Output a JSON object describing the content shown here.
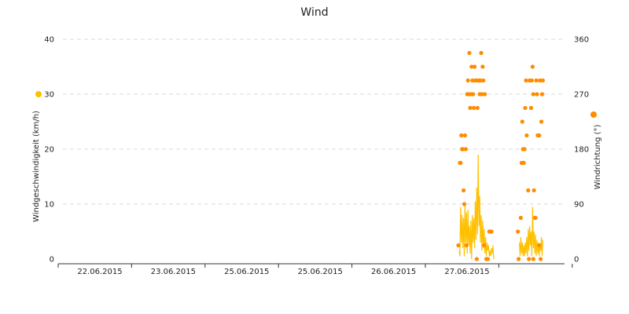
{
  "chart_data": {
    "type": "line",
    "title": "Wind",
    "xlabel": "",
    "x_tick_labels": [
      "22.06.2015",
      "23.06.2015",
      "25.06.2015",
      "25.06.2015",
      "26.06.2015",
      "27.06.2015"
    ],
    "y_left": {
      "label": "Windgeschwindigkeit (km/h)",
      "lim": [
        0,
        40
      ],
      "ticks": [
        0,
        10,
        20,
        30,
        40
      ]
    },
    "y_right": {
      "label": "Windrichtung (°)",
      "lim": [
        0,
        360
      ],
      "ticks": [
        0,
        90,
        180,
        270,
        360
      ]
    },
    "grid": true,
    "legend_markers": {
      "speed": "left",
      "direction": "right"
    },
    "colors": {
      "speed": "#ffc000",
      "direction": "#ff8c00",
      "grid": "#d8d8d8",
      "axis": "#333333"
    },
    "series": [
      {
        "axis": "left",
        "style": "line",
        "x": [
          5.46,
          5.47,
          5.48,
          5.49,
          5.5,
          5.51,
          5.52,
          5.53,
          5.54,
          5.55,
          5.56,
          5.57,
          5.58,
          5.59,
          5.6,
          5.61,
          5.62,
          5.63,
          5.64,
          5.65,
          5.66,
          5.67,
          5.68,
          5.69,
          5.7,
          5.71,
          5.72,
          5.73,
          5.74,
          5.75,
          5.76,
          5.77,
          5.78,
          5.79,
          5.8,
          5.81,
          5.82,
          5.83,
          5.84,
          5.85,
          5.86,
          5.87,
          5.88,
          5.89,
          5.9,
          5.91,
          5.92,
          5.93,
          null,
          6.28,
          6.29,
          6.3,
          6.31,
          6.32,
          6.33,
          6.34,
          6.35,
          6.36,
          6.37,
          6.38,
          6.39,
          6.4,
          6.41,
          6.42,
          6.43,
          6.44,
          6.45,
          6.46,
          6.47,
          6.48,
          6.49,
          6.5,
          6.51,
          6.52,
          6.53,
          6.54,
          6.55,
          6.56,
          6.57,
          6.58,
          6.59,
          6.6
        ],
        "values": [
          1.5,
          0.5,
          9.5,
          3,
          8,
          2,
          7.5,
          0.5,
          10,
          3,
          8.5,
          1,
          9,
          2.5,
          6,
          1,
          7,
          0,
          8,
          3,
          7.5,
          2,
          10.5,
          3.5,
          13,
          4.5,
          19,
          6,
          11.5,
          3,
          8,
          1.5,
          7,
          2,
          5.5,
          1,
          4,
          0.5,
          3,
          1.5,
          2.5,
          0.5,
          1.5,
          0.5,
          2,
          1,
          2.5,
          0,
          null,
          3,
          0.5,
          4,
          1,
          3,
          0.5,
          2.5,
          0.5,
          3,
          1,
          4,
          0.5,
          5.5,
          1.5,
          6,
          2.5,
          5,
          0.5,
          9.5,
          2,
          5,
          1,
          4.5,
          0.5,
          3.5,
          1,
          3,
          0.5,
          2.5,
          1.5,
          4,
          0.5,
          3.5
        ]
      },
      {
        "axis": "right",
        "style": "scatter",
        "points": [
          [
            5.45,
            22.5
          ],
          [
            5.47,
            157.5
          ],
          [
            5.48,
            157.5
          ],
          [
            5.49,
            202.5
          ],
          [
            5.5,
            180
          ],
          [
            5.51,
            180
          ],
          [
            5.52,
            112.5
          ],
          [
            5.53,
            90
          ],
          [
            5.54,
            202.5
          ],
          [
            5.55,
            180
          ],
          [
            5.56,
            22.5
          ],
          [
            5.57,
            270
          ],
          [
            5.58,
            292.5
          ],
          [
            5.59,
            270
          ],
          [
            5.6,
            337.5
          ],
          [
            5.61,
            247.5
          ],
          [
            5.62,
            270
          ],
          [
            5.63,
            315
          ],
          [
            5.64,
            292.5
          ],
          [
            5.65,
            270
          ],
          [
            5.66,
            247.5
          ],
          [
            5.67,
            315
          ],
          [
            5.68,
            292.5
          ],
          [
            5.69,
            292.5
          ],
          [
            5.7,
            0
          ],
          [
            5.71,
            247.5
          ],
          [
            5.72,
            292.5
          ],
          [
            5.73,
            292.5
          ],
          [
            5.74,
            270
          ],
          [
            5.75,
            292.5
          ],
          [
            5.76,
            337.5
          ],
          [
            5.77,
            270
          ],
          [
            5.78,
            315
          ],
          [
            5.79,
            292.5
          ],
          [
            5.8,
            22.5
          ],
          [
            5.81,
            270
          ],
          [
            5.83,
            0
          ],
          [
            5.85,
            0
          ],
          [
            5.87,
            45
          ],
          [
            5.88,
            45
          ],
          [
            5.89,
            45
          ],
          [
            5.9,
            45
          ],
          [
            6.26,
            45
          ],
          [
            6.3,
            67.5
          ],
          [
            6.31,
            157.5
          ],
          [
            6.32,
            225
          ],
          [
            6.33,
            180
          ],
          [
            6.34,
            157.5
          ],
          [
            6.35,
            180
          ],
          [
            6.36,
            247.5
          ],
          [
            6.37,
            292.5
          ],
          [
            6.38,
            202.5
          ],
          [
            6.4,
            112.5
          ],
          [
            6.42,
            292.5
          ],
          [
            6.44,
            247.5
          ],
          [
            6.45,
            292.5
          ],
          [
            6.46,
            315
          ],
          [
            6.47,
            270
          ],
          [
            6.48,
            112.5
          ],
          [
            6.49,
            67.5
          ],
          [
            6.5,
            67.5
          ],
          [
            6.51,
            292.5
          ],
          [
            6.52,
            270
          ],
          [
            6.53,
            202.5
          ],
          [
            6.55,
            202.5
          ],
          [
            6.56,
            292.5
          ],
          [
            6.58,
            225
          ],
          [
            6.59,
            270
          ],
          [
            6.6,
            292.5
          ],
          [
            6.27,
            0
          ],
          [
            6.41,
            0
          ],
          [
            6.47,
            0
          ],
          [
            6.55,
            22.5
          ],
          [
            6.57,
            0
          ]
        ]
      }
    ]
  }
}
